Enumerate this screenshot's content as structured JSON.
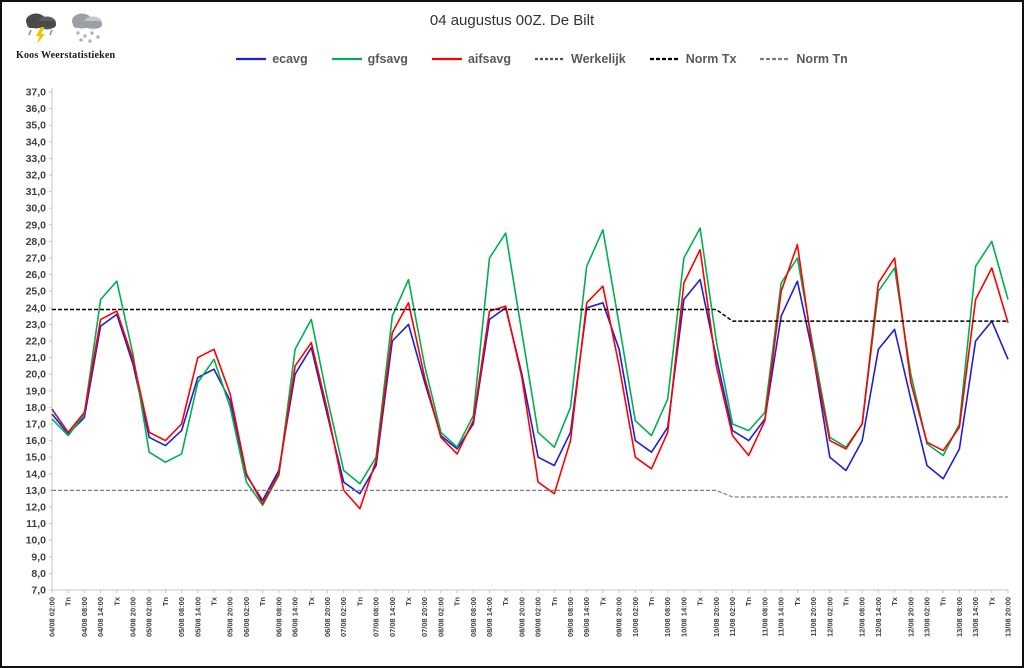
{
  "logo": {
    "text": "Koos Weerstatistieken"
  },
  "chart_data": {
    "type": "line",
    "title": "04 augustus 00Z. De Bilt",
    "xlabel": "",
    "ylabel": "",
    "ylim": [
      7,
      37
    ],
    "ytick_step": 1,
    "ytick_format": "comma-decimal",
    "grid": false,
    "legend_position": "top",
    "categories": [
      "04/08 02:00",
      "Tn",
      "04/08 08:00",
      "04/08 14:00",
      "Tx",
      "04/08 20:00",
      "05/08 02:00",
      "Tn",
      "05/08 08:00",
      "05/08 14:00",
      "Tx",
      "05/08 20:00",
      "06/08 02:00",
      "Tn",
      "06/08 08:00",
      "06/08 14:00",
      "Tx",
      "06/08 20:00",
      "07/08 02:00",
      "Tn",
      "07/08 08:00",
      "07/08 14:00",
      "Tx",
      "07/08 20:00",
      "08/08 02:00",
      "Tn",
      "08/08 08:00",
      "08/08 14:00",
      "Tx",
      "08/08 20:00",
      "09/08 02:00",
      "Tn",
      "09/08 08:00",
      "09/08 14:00",
      "Tx",
      "09/08 20:00",
      "10/08 02:00",
      "Tn",
      "10/08 08:00",
      "10/08 14:00",
      "Tx",
      "10/08 20:00",
      "11/08 02:00",
      "Tn",
      "11/08 08:00",
      "11/08 14:00",
      "Tx",
      "11/08 20:00",
      "12/08 02:00",
      "Tn",
      "12/08 08:00",
      "12/08 14:00",
      "Tx",
      "12/08 20:00",
      "13/08 02:00",
      "Tn",
      "13/08 08:00",
      "13/08 14:00",
      "Tx",
      "13/08 20:00"
    ],
    "series": [
      {
        "name": "ecavg",
        "color": "#1F1FD6",
        "dash": null,
        "width": 1.6,
        "values": [
          17.6,
          16.4,
          17.4,
          22.9,
          23.6,
          20.6,
          16.2,
          15.7,
          16.6,
          19.8,
          20.3,
          18.4,
          13.9,
          12.4,
          14.2,
          20.0,
          21.6,
          17.5,
          13.5,
          12.8,
          14.5,
          22.0,
          23.0,
          19.5,
          16.3,
          15.5,
          17.0,
          23.3,
          24.0,
          20.0,
          15.0,
          14.5,
          16.5,
          24.0,
          24.3,
          21.5,
          16.0,
          15.3,
          16.8,
          24.5,
          25.7,
          21.0,
          16.6,
          16.0,
          17.3,
          23.5,
          25.6,
          21.0,
          15.0,
          14.2,
          16.0,
          21.5,
          22.7,
          18.5,
          14.5,
          13.7,
          15.5,
          22.0,
          23.2,
          20.9
        ]
      },
      {
        "name": "gfsavg",
        "color": "#00B050",
        "dash": null,
        "width": 1.6,
        "values": [
          17.3,
          16.3,
          17.6,
          24.5,
          25.6,
          21.2,
          15.3,
          14.7,
          15.2,
          19.5,
          20.9,
          18.0,
          13.5,
          12.1,
          13.9,
          21.5,
          23.3,
          18.5,
          14.2,
          13.4,
          15.0,
          23.5,
          25.7,
          20.5,
          16.5,
          15.6,
          17.5,
          27.0,
          28.5,
          22.5,
          16.5,
          15.6,
          18.0,
          26.5,
          28.7,
          23.0,
          17.2,
          16.3,
          18.5,
          27.0,
          28.8,
          22.0,
          17.0,
          16.6,
          17.7,
          25.5,
          27.0,
          21.5,
          16.2,
          15.6,
          17.0,
          25.0,
          26.4,
          20.0,
          15.8,
          15.1,
          17.0,
          26.5,
          28.0,
          24.5
        ]
      },
      {
        "name": "aifsavg",
        "color": "#FF0000",
        "dash": null,
        "width": 1.6,
        "values": [
          17.9,
          16.5,
          17.7,
          23.3,
          23.8,
          20.9,
          16.5,
          16.0,
          17.0,
          21.0,
          21.5,
          18.8,
          14.0,
          12.2,
          14.0,
          20.5,
          21.9,
          17.8,
          13.0,
          11.9,
          14.8,
          22.5,
          24.3,
          19.8,
          16.2,
          15.2,
          17.2,
          23.8,
          24.1,
          19.8,
          13.5,
          12.8,
          16.0,
          24.3,
          25.3,
          20.5,
          15.0,
          14.3,
          16.5,
          25.5,
          27.5,
          20.5,
          16.3,
          15.1,
          17.2,
          25.0,
          27.8,
          21.0,
          16.0,
          15.5,
          17.0,
          25.5,
          27.0,
          19.5,
          15.9,
          15.4,
          16.8,
          24.5,
          26.4,
          23.1
        ]
      },
      {
        "name": "Werkelijk",
        "color": "#44546A",
        "dash": "3 2",
        "width": 1.6,
        "values": [
          17.9,
          16.4
        ]
      },
      {
        "name": "Norm Tx",
        "color": "#000000",
        "dash": "4 2",
        "width": 1.5,
        "values": [
          23.9,
          23.9,
          23.9,
          23.9,
          23.9,
          23.9,
          23.9,
          23.9,
          23.9,
          23.9,
          23.9,
          23.9,
          23.9,
          23.9,
          23.9,
          23.9,
          23.9,
          23.9,
          23.9,
          23.9,
          23.9,
          23.9,
          23.9,
          23.9,
          23.9,
          23.9,
          23.9,
          23.9,
          23.9,
          23.9,
          23.9,
          23.9,
          23.9,
          23.9,
          23.9,
          23.9,
          23.9,
          23.9,
          23.9,
          23.9,
          23.9,
          23.9,
          23.2,
          23.2,
          23.2,
          23.2,
          23.2,
          23.2,
          23.2,
          23.2,
          23.2,
          23.2,
          23.2,
          23.2,
          23.2,
          23.2,
          23.2,
          23.2,
          23.2,
          23.2
        ]
      },
      {
        "name": "Norm Tn",
        "color": "#808080",
        "dash": "4 2",
        "width": 1.2,
        "values": [
          13.0,
          13.0,
          13.0,
          13.0,
          13.0,
          13.0,
          13.0,
          13.0,
          13.0,
          13.0,
          13.0,
          13.0,
          13.0,
          13.0,
          13.0,
          13.0,
          13.0,
          13.0,
          13.0,
          13.0,
          13.0,
          13.0,
          13.0,
          13.0,
          13.0,
          13.0,
          13.0,
          13.0,
          13.0,
          13.0,
          13.0,
          13.0,
          13.0,
          13.0,
          13.0,
          13.0,
          13.0,
          13.0,
          13.0,
          13.0,
          13.0,
          13.0,
          12.6,
          12.6,
          12.6,
          12.6,
          12.6,
          12.6,
          12.6,
          12.6,
          12.6,
          12.6,
          12.6,
          12.6,
          12.6,
          12.6,
          12.6,
          12.6,
          12.6,
          12.6
        ]
      }
    ]
  }
}
